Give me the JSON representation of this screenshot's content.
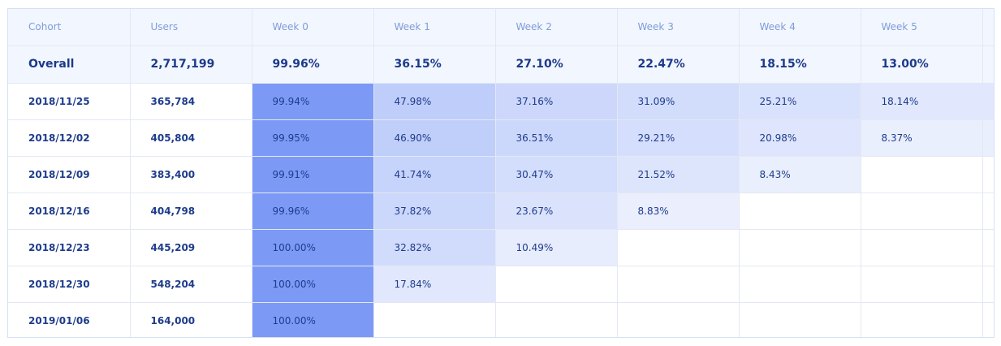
{
  "chart_data": {
    "type": "table",
    "columns": [
      "Cohort",
      "Users",
      "Week 0",
      "Week 1",
      "Week 2",
      "Week 3",
      "Week 4",
      "Week 5"
    ],
    "overall": {
      "cohort": "Overall",
      "users": "2,717,199",
      "weeks": [
        "99.96%",
        "36.15%",
        "27.10%",
        "22.47%",
        "18.15%",
        "13.00%"
      ]
    },
    "rows": [
      {
        "cohort": "2018/11/25",
        "users": "365,784",
        "weeks": [
          "99.94%",
          "47.98%",
          "37.16%",
          "31.09%",
          "25.21%",
          "18.14%"
        ]
      },
      {
        "cohort": "2018/12/02",
        "users": "405,804",
        "weeks": [
          "99.95%",
          "46.90%",
          "36.51%",
          "29.21%",
          "20.98%",
          "8.37%"
        ]
      },
      {
        "cohort": "2018/12/09",
        "users": "383,400",
        "weeks": [
          "99.91%",
          "41.74%",
          "30.47%",
          "21.52%",
          "8.43%"
        ]
      },
      {
        "cohort": "2018/12/16",
        "users": "404,798",
        "weeks": [
          "99.96%",
          "37.82%",
          "23.67%",
          "8.83%"
        ]
      },
      {
        "cohort": "2018/12/23",
        "users": "445,209",
        "weeks": [
          "100.00%",
          "32.82%",
          "10.49%"
        ]
      },
      {
        "cohort": "2018/12/30",
        "users": "548,204",
        "weeks": [
          "100.00%",
          "17.84%"
        ]
      },
      {
        "cohort": "2019/01/06",
        "users": "164,000",
        "weeks": [
          "100.00%"
        ]
      }
    ],
    "heatmap_colors": {
      "low": "#f1f4fe",
      "high": "#7c9af5",
      "header_bg": "#f2f6ff",
      "header_text": "#7f9cd8",
      "body_text": "#1e3c8c"
    }
  }
}
